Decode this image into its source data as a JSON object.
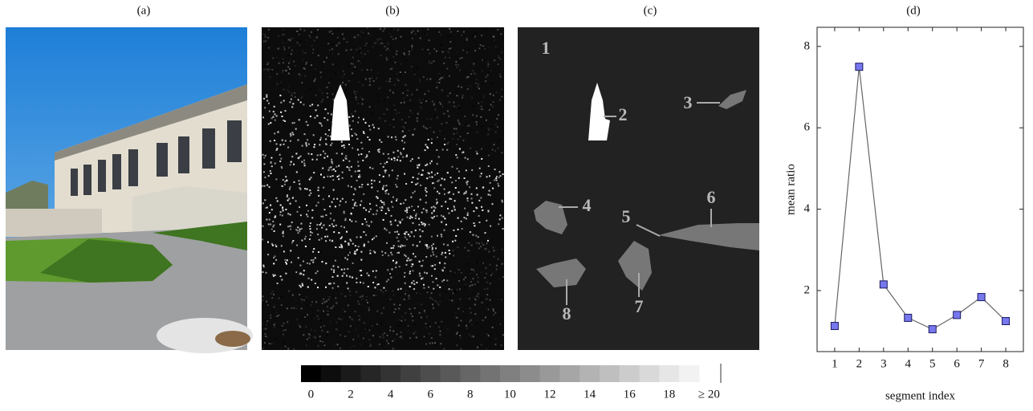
{
  "panels": [
    {
      "label": "(a)"
    },
    {
      "label": "(b)"
    },
    {
      "label": "(c)"
    },
    {
      "label": "(d)"
    }
  ],
  "colorbar": {
    "range": [
      0,
      20
    ],
    "ticks": [
      0,
      2,
      4,
      6,
      8,
      10,
      12,
      14,
      16,
      18,
      {
        "value": 20,
        "label": "≥ 20"
      }
    ]
  },
  "segment_labels": [
    "1",
    "2",
    "3",
    "4",
    "5",
    "6",
    "7",
    "8"
  ],
  "chart_data": {
    "type": "line",
    "xlabel": "segment index",
    "ylabel": "mean ratio",
    "x": [
      1,
      2,
      3,
      4,
      5,
      6,
      7,
      8
    ],
    "values": [
      1.13,
      7.5,
      2.15,
      1.33,
      1.05,
      1.4,
      1.84,
      1.25
    ],
    "color": "#7777ee",
    "xlim": [
      0.28,
      8.72
    ],
    "ylim": [
      0.5,
      8.47
    ],
    "xticks": [
      1,
      2,
      3,
      4,
      5,
      6,
      7,
      8
    ],
    "yticks": [
      2,
      4,
      6,
      8
    ]
  }
}
